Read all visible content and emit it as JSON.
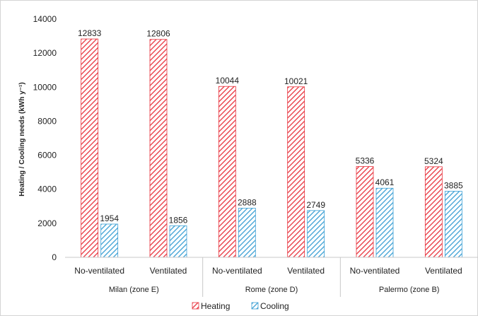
{
  "chart_data": {
    "type": "bar",
    "ylabel": "Heating / Cooling needs (kWh y⁻¹)",
    "ylim": [
      0,
      14000
    ],
    "yticks": [
      0,
      2000,
      4000,
      6000,
      8000,
      10000,
      12000,
      14000
    ],
    "grid": false,
    "legend_position": "bottom",
    "groups": [
      {
        "label": "Milan (zone E)",
        "categories": [
          "No-ventilated",
          "Ventilated"
        ]
      },
      {
        "label": "Rome (zone D)",
        "categories": [
          "No-ventilated",
          "Ventilated"
        ]
      },
      {
        "label": "Palermo (zone B)",
        "categories": [
          "No-ventilated",
          "Ventilated"
        ]
      }
    ],
    "series": [
      {
        "name": "Heating",
        "color": "#e8323c",
        "pattern": "diagonal-hatch",
        "values": [
          12833,
          12806,
          10044,
          10021,
          5336,
          5324
        ]
      },
      {
        "name": "Cooling",
        "color": "#3a9fd4",
        "pattern": "diagonal-hatch",
        "values": [
          1954,
          1856,
          2888,
          2749,
          4061,
          3885
        ]
      }
    ]
  }
}
